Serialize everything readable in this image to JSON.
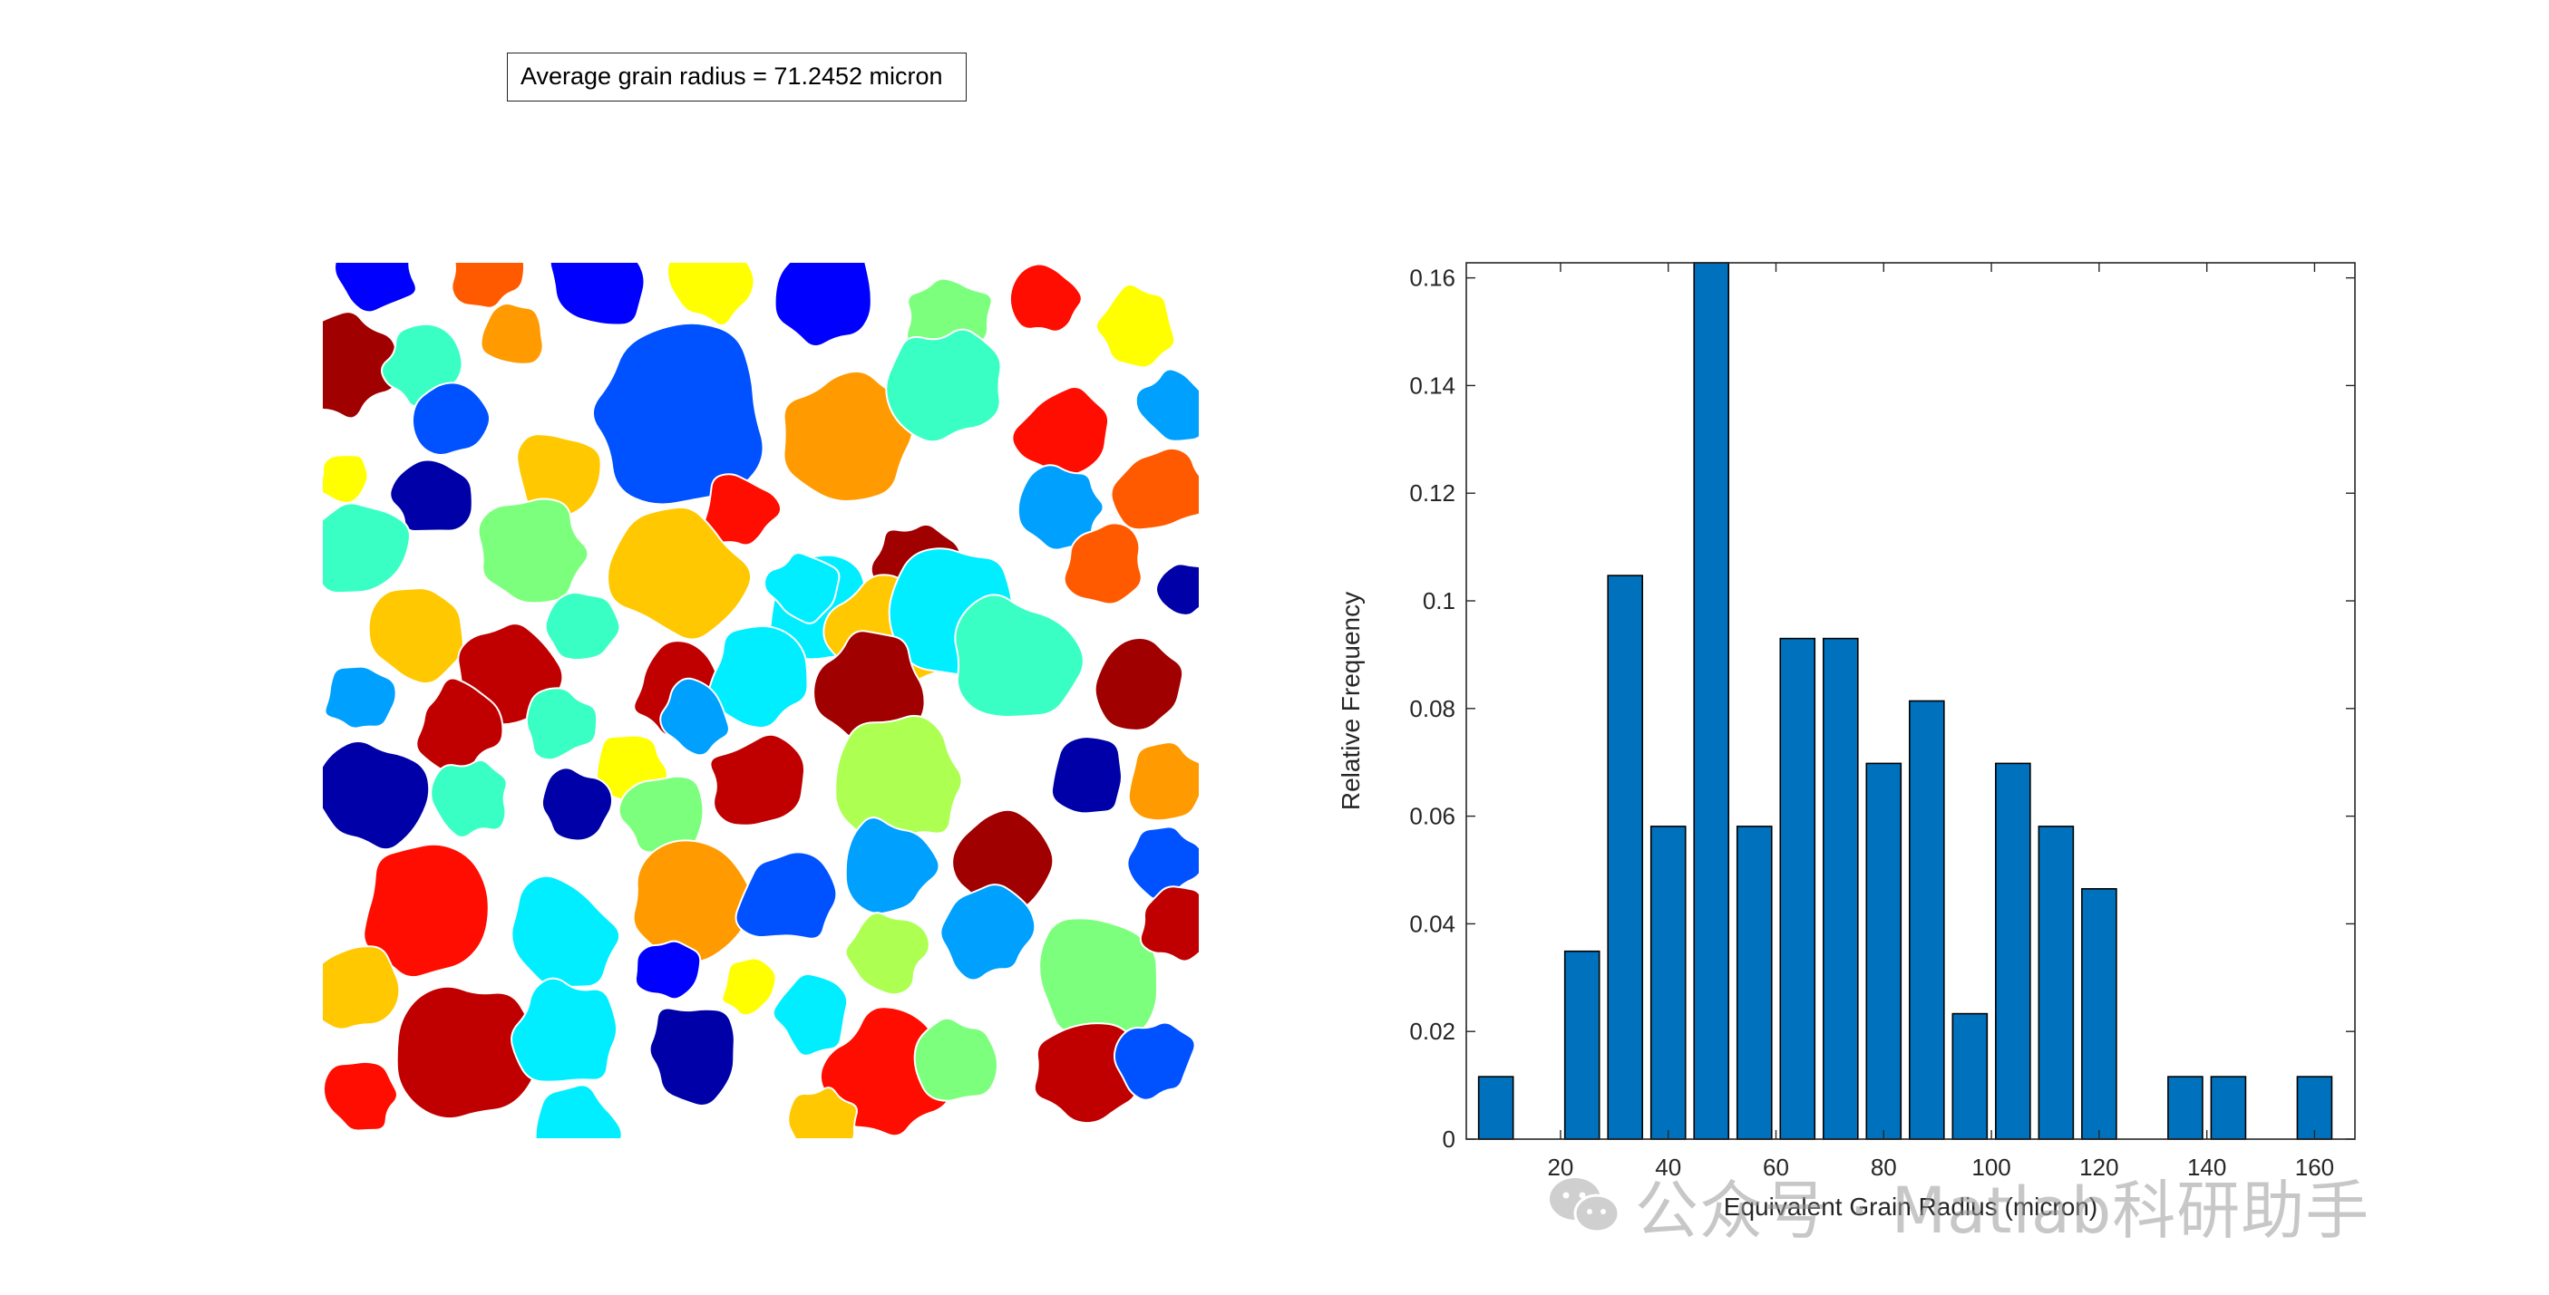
{
  "annotation": {
    "text": "Average grain radius = 71.2452 micron"
  },
  "grain_map": {
    "colors": [
      "#0000a8",
      "#0000ff",
      "#0051ff",
      "#00a0ff",
      "#00eeff",
      "#3affc5",
      "#7cff7c",
      "#adff52",
      "#ffff00",
      "#ffc800",
      "#ff9a00",
      "#ff5a00",
      "#ff0d00",
      "#c00000",
      "#a00000"
    ]
  },
  "chart_data": {
    "type": "bar",
    "x": [
      8,
      16,
      24,
      32,
      40,
      48,
      56,
      64,
      72,
      80,
      88,
      96,
      104,
      112,
      120,
      128,
      136,
      144,
      152,
      160
    ],
    "values": [
      0.0116,
      0,
      0.0349,
      0.1047,
      0.0581,
      0.1628,
      0.0581,
      0.093,
      0.093,
      0.0698,
      0.0814,
      0.0233,
      0.0698,
      0.0581,
      0.0465,
      0,
      0.0116,
      0.0116,
      0,
      0.0116
    ],
    "bar_color": "#0072bd",
    "xlabel": "Equivalent Grain Radius (micron)",
    "ylabel": "Relative Frequency",
    "xlim": [
      2.5,
      167.5
    ],
    "ylim": [
      0,
      0.1628
    ],
    "xticks": [
      20,
      40,
      60,
      80,
      100,
      120,
      140,
      160
    ],
    "xtick_labels": [
      "20",
      "40",
      "60",
      "80",
      "100",
      "120",
      "140",
      "160"
    ],
    "yticks": [
      0,
      0.02,
      0.04,
      0.06,
      0.08,
      0.1,
      0.12,
      0.14,
      0.16
    ],
    "ytick_labels": [
      "0",
      "0.02",
      "0.04",
      "0.06",
      "0.08",
      "0.1",
      "0.12",
      "0.14",
      "0.16"
    ],
    "grid": false
  },
  "watermark": {
    "text": "公众号 · Matlab科研助手",
    "icon": "wechat-icon"
  }
}
